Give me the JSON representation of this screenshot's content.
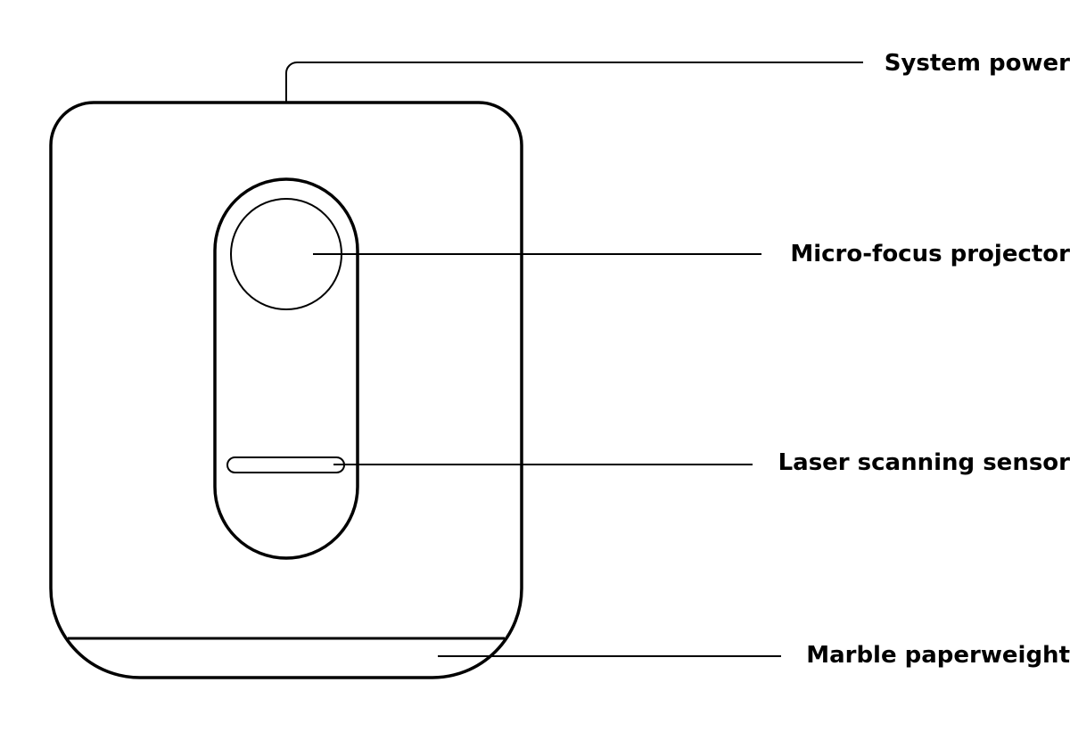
{
  "labels": {
    "system_power": "System power",
    "projector": "Micro-focus projector",
    "sensor": "Laser scanning sensor",
    "base": "Marble paperweight"
  },
  "colors": {
    "stroke": "#000000",
    "background": "#ffffff"
  }
}
